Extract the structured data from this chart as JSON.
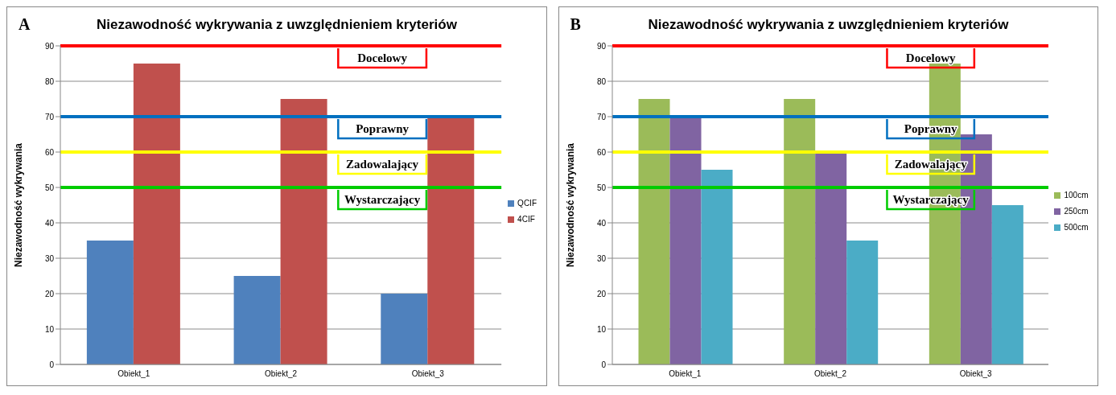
{
  "chart_data": [
    {
      "type": "bar",
      "title": "Niezawodność wykrywania z uwzględnieniem kryteriów",
      "annotations": [
        "A"
      ],
      "ylabel": "Niezawodność wykrywania",
      "categories": [
        "Obiekt_1",
        "Obiekt_2",
        "Obiekt_3"
      ],
      "series": [
        {
          "name": "QCIF",
          "color": "#4f81bd",
          "values": [
            35,
            25,
            20
          ]
        },
        {
          "name": "4CIF",
          "color": "#c0504d",
          "values": [
            85,
            75,
            70
          ]
        }
      ],
      "ylim": [
        0,
        90
      ],
      "yticks": [
        0,
        10,
        20,
        30,
        40,
        50,
        60,
        70,
        80,
        90
      ],
      "grid": "y",
      "legend": "right",
      "ref_lines": [
        {
          "axis": "y",
          "value": 90,
          "label": "Docelowy",
          "color": "#ff0000"
        },
        {
          "axis": "y",
          "value": 70,
          "label": "Poprawny",
          "color": "#0070c0"
        },
        {
          "axis": "y",
          "value": 60,
          "label": "Zadowalający",
          "color": "#ffff00"
        },
        {
          "axis": "y",
          "value": 50,
          "label": "Wystarczający",
          "color": "#00cc00"
        }
      ]
    },
    {
      "type": "bar",
      "title": "Niezawodność wykrywania z uwzględnieniem kryteriów",
      "annotations": [
        "B"
      ],
      "ylabel": "Niezawodność wykrywania",
      "categories": [
        "Obiekt_1",
        "Obiekt_2",
        "Obiekt_3"
      ],
      "series": [
        {
          "name": "100cm",
          "color": "#9bbb59",
          "values": [
            75,
            75,
            85
          ]
        },
        {
          "name": "250cm",
          "color": "#8064a2",
          "values": [
            70,
            60,
            65
          ]
        },
        {
          "name": "500cm",
          "color": "#4bacc6",
          "values": [
            55,
            35,
            45
          ]
        }
      ],
      "ylim": [
        0,
        90
      ],
      "yticks": [
        0,
        10,
        20,
        30,
        40,
        50,
        60,
        70,
        80,
        90
      ],
      "grid": "y",
      "legend": "right",
      "ref_lines": [
        {
          "axis": "y",
          "value": 90,
          "label": "Docelowy",
          "color": "#ff0000"
        },
        {
          "axis": "y",
          "value": 70,
          "label": "Poprawny",
          "color": "#0070c0"
        },
        {
          "axis": "y",
          "value": 60,
          "label": "Zadowalający",
          "color": "#ffff00"
        },
        {
          "axis": "y",
          "value": 50,
          "label": "Wystarczający",
          "color": "#00cc00"
        }
      ]
    }
  ]
}
